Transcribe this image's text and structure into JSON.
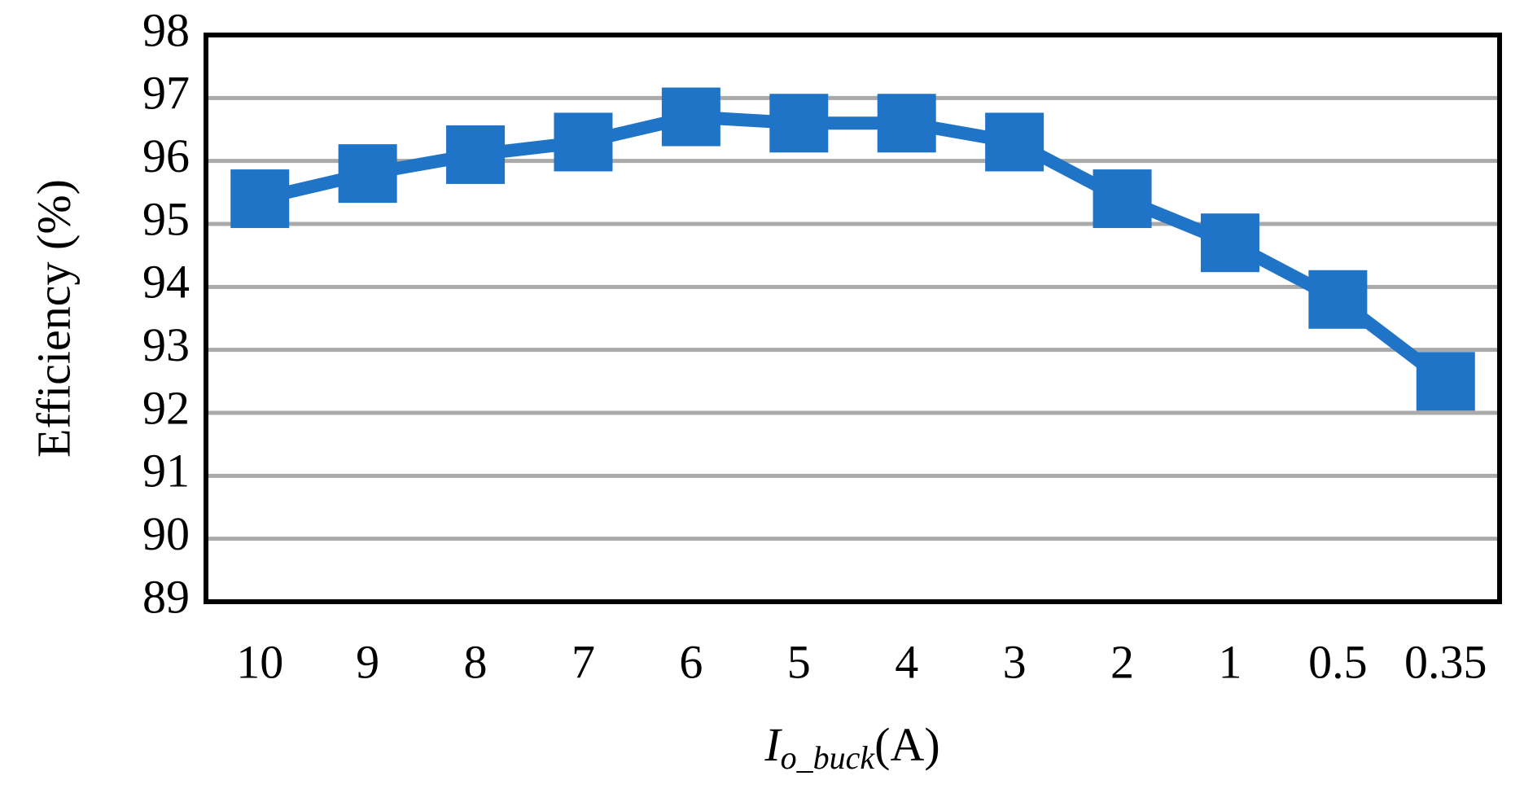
{
  "chart_data": {
    "type": "line",
    "ylabel": "Efficiency (%)",
    "xlabel": [
      "I",
      "o_buck",
      "(A)"
    ],
    "categories": [
      "10",
      "9",
      "8",
      "7",
      "6",
      "5",
      "4",
      "3",
      "2",
      "1",
      "0.5",
      "0.35"
    ],
    "series": [
      {
        "color": "#1f74c8",
        "values": [
          95.4,
          95.8,
          96.1,
          96.3,
          96.7,
          96.6,
          96.6,
          96.3,
          95.4,
          94.7,
          93.8,
          92.5
        ]
      }
    ],
    "ylim": [
      89,
      98
    ],
    "yticks": [
      89,
      90,
      91,
      92,
      93,
      94,
      95,
      96,
      97,
      98
    ],
    "grid": true
  }
}
